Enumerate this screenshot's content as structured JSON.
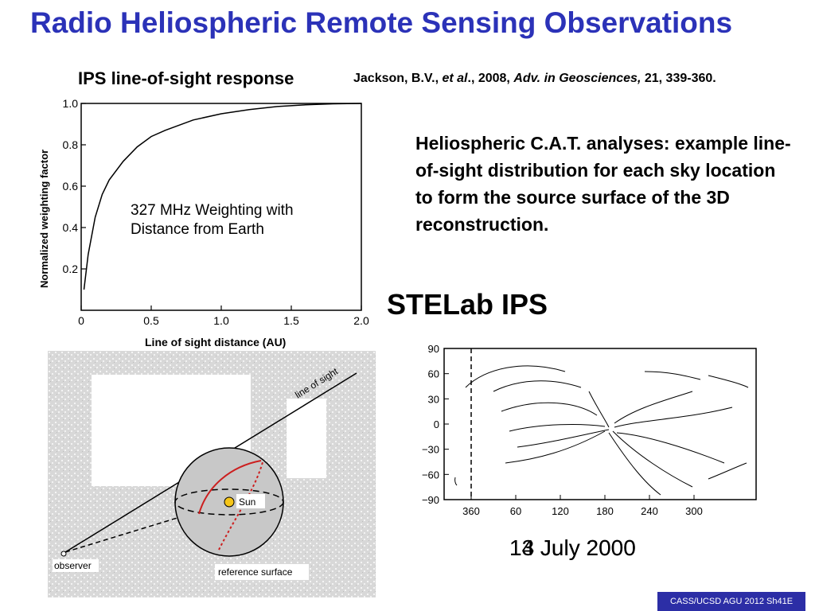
{
  "slide": {
    "title": "Radio Heliospheric Remote Sensing Observations",
    "subheading": "IPS line-of-sight response",
    "citation": {
      "authors": "Jackson, B.V.,",
      "etal": "et al",
      "year": "., 2008,",
      "journal": "Adv. in Geosciences,",
      "pages": "21, 339-360."
    },
    "paragraph": "Heliospheric C.A.T. analyses: example line-of-sight distribution for each sky location to form the source surface of the 3D reconstruction.",
    "stelab_label": "STELab IPS",
    "date_label_a": "13 July 2000",
    "date_label_b": "14 July 2000",
    "footer": "CASS/UCSD AGU 2012 Sh41E"
  },
  "weighting_plot": {
    "ylabel": "Normalized weighting factor",
    "xlabel": "Line of sight  distance (AU)",
    "annotation_line1": "327 MHz Weighting with",
    "annotation_line2": "Distance from Earth",
    "y_ticks": [
      "1.0",
      "0.8",
      "0.6",
      "0.4",
      "0.2"
    ],
    "x_ticks": [
      "0",
      "0.5",
      "1.0",
      "1.5",
      "2.0"
    ]
  },
  "geometry_diagram": {
    "line_of_sight_label": "line of sight",
    "sun_label": "Sun",
    "observer_label": "observer",
    "reference_surface_label": "reference surface"
  },
  "map_plot": {
    "y_ticks": [
      "90",
      "60",
      "30",
      "0",
      "−30",
      "−60",
      "−90"
    ],
    "x_ticks": [
      "360",
      "60",
      "120",
      "180",
      "240",
      "300"
    ]
  },
  "chart_data": {
    "type": "line",
    "title": "",
    "xlabel": "Line of sight  distance (AU)",
    "ylabel": "Normalized weighting factor",
    "xlim": [
      0,
      2.0
    ],
    "ylim": [
      0,
      1.0
    ],
    "series": [
      {
        "x": [
          0.02,
          0.05,
          0.1,
          0.15,
          0.2,
          0.3,
          0.4,
          0.5,
          0.6,
          0.8,
          1.0,
          1.2,
          1.4,
          1.6,
          1.8,
          2.0
        ],
        "y": [
          0.1,
          0.27,
          0.45,
          0.56,
          0.63,
          0.72,
          0.79,
          0.84,
          0.87,
          0.92,
          0.95,
          0.97,
          0.985,
          0.993,
          0.998,
          1.0
        ]
      }
    ]
  }
}
